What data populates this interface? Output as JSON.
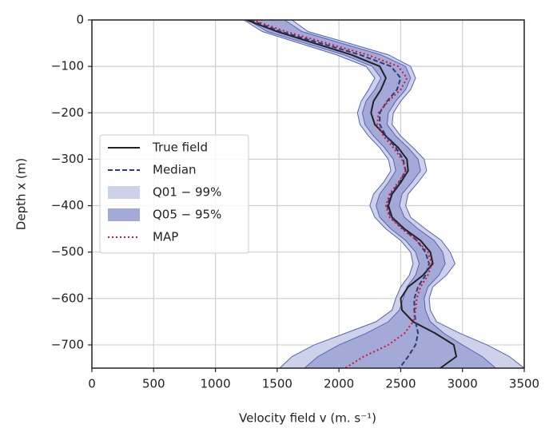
{
  "chart_data": {
    "type": "line",
    "x_label": "Velocity field v (m. s⁻¹)",
    "y_label": "Depth x (m)",
    "y": [
      0,
      -25,
      -50,
      -75,
      -100,
      -125,
      -150,
      -175,
      -200,
      -225,
      -250,
      -275,
      -300,
      -325,
      -350,
      -375,
      -400,
      -425,
      -450,
      -475,
      -500,
      -525,
      -550,
      -575,
      -600,
      -625,
      -650,
      -675,
      -700,
      -725,
      -750
    ],
    "series": [
      {
        "name": "True field",
        "kind": "line",
        "style": "solid",
        "color": "#222222",
        "values": [
          1250,
          1500,
          1800,
          2100,
          2330,
          2380,
          2340,
          2280,
          2260,
          2290,
          2380,
          2480,
          2550,
          2560,
          2500,
          2430,
          2400,
          2430,
          2530,
          2660,
          2740,
          2760,
          2680,
          2560,
          2500,
          2510,
          2600,
          2780,
          2930,
          2950,
          2820
        ]
      },
      {
        "name": "Median",
        "kind": "line",
        "style": "dashed",
        "color": "#2e3a78",
        "values": [
          1280,
          1530,
          1850,
          2170,
          2420,
          2500,
          2470,
          2390,
          2330,
          2330,
          2380,
          2460,
          2520,
          2540,
          2490,
          2420,
          2390,
          2420,
          2520,
          2630,
          2700,
          2730,
          2700,
          2640,
          2610,
          2610,
          2620,
          2640,
          2620,
          2560,
          2490
        ]
      },
      {
        "name": "Q01 − 99%",
        "kind": "band",
        "color": "#cdd1ea",
        "edge_color": "#5563b5",
        "lower": [
          1230,
          1380,
          1680,
          1980,
          2220,
          2290,
          2240,
          2180,
          2150,
          2170,
          2240,
          2330,
          2400,
          2420,
          2360,
          2280,
          2250,
          2290,
          2380,
          2500,
          2580,
          2600,
          2570,
          2500,
          2460,
          2430,
          2300,
          2050,
          1800,
          1620,
          1520
        ],
        "upper": [
          1620,
          1750,
          2080,
          2400,
          2580,
          2620,
          2580,
          2500,
          2440,
          2430,
          2500,
          2600,
          2690,
          2710,
          2640,
          2560,
          2540,
          2580,
          2700,
          2830,
          2900,
          2940,
          2870,
          2760,
          2730,
          2740,
          2790,
          2980,
          3200,
          3380,
          3500
        ]
      },
      {
        "name": "Q05 − 95%",
        "kind": "band",
        "color": "#a3aad8",
        "edge_color": "#5563b5",
        "lower": [
          1260,
          1420,
          1730,
          2040,
          2270,
          2340,
          2290,
          2220,
          2190,
          2210,
          2280,
          2370,
          2440,
          2460,
          2400,
          2330,
          2300,
          2330,
          2420,
          2540,
          2620,
          2650,
          2620,
          2550,
          2520,
          2490,
          2400,
          2220,
          2000,
          1830,
          1720
        ],
        "upper": [
          1560,
          1700,
          2020,
          2340,
          2540,
          2580,
          2540,
          2460,
          2400,
          2390,
          2460,
          2560,
          2640,
          2660,
          2590,
          2510,
          2490,
          2530,
          2640,
          2770,
          2840,
          2860,
          2810,
          2720,
          2690,
          2700,
          2740,
          2850,
          3000,
          3160,
          3270
        ]
      },
      {
        "name": "MAP",
        "kind": "line",
        "style": "dotted",
        "color": "#e0102f",
        "values": [
          1300,
          1570,
          1900,
          2230,
          2480,
          2550,
          2500,
          2400,
          2320,
          2310,
          2360,
          2440,
          2510,
          2540,
          2480,
          2410,
          2380,
          2410,
          2510,
          2630,
          2720,
          2750,
          2720,
          2660,
          2630,
          2620,
          2600,
          2530,
          2400,
          2200,
          2050
        ]
      }
    ],
    "xlim": [
      0,
      3500
    ],
    "xticks": [
      0,
      500,
      1000,
      1500,
      2000,
      2500,
      3000,
      3500
    ],
    "ylim": [
      -750,
      0
    ],
    "yticks": [
      0,
      {
        "value": -100,
        "label": "−100"
      },
      {
        "value": -200,
        "label": "−200"
      },
      {
        "value": -300,
        "label": "−300"
      },
      {
        "value": -400,
        "label": "−400"
      },
      {
        "value": -500,
        "label": "−500"
      },
      {
        "value": -600,
        "label": "−600"
      },
      {
        "value": -700,
        "label": "−700"
      }
    ],
    "grid": true,
    "legend": "center left"
  }
}
